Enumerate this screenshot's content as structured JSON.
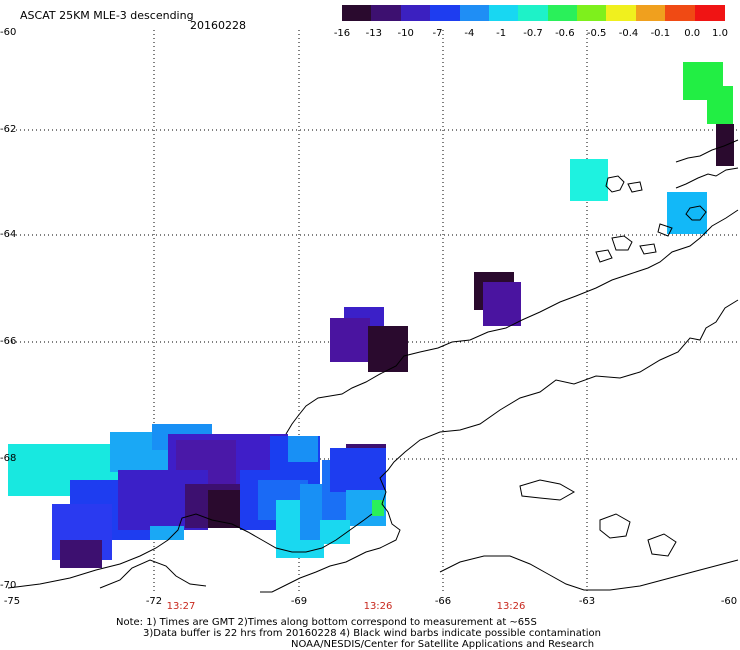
{
  "header": {
    "title": "ASCAT 25KM MLE-3 descending",
    "date": "20160228"
  },
  "colorbar": {
    "labels": [
      "-16",
      "-13",
      "-10",
      "-7",
      "-4",
      "-1",
      "-0.7",
      "-0.6",
      "-0.5",
      "-0.4",
      "-0.1",
      "0.0",
      "1.0"
    ],
    "colors": [
      "#2a0a2e",
      "#3d1070",
      "#3b20c0",
      "#1e3df0",
      "#1f8ef5",
      "#18d7f2",
      "#1ef2c8",
      "#2af05a",
      "#7ef01c",
      "#f0f01e",
      "#f0a01e",
      "#f04a14",
      "#f01414"
    ]
  },
  "axes": {
    "lat_labels": [
      "-60",
      "-62",
      "-64",
      "-66",
      "-68",
      "-70"
    ],
    "lon_labels": [
      "-75",
      "-72",
      "-69",
      "-66",
      "-63",
      "-60"
    ]
  },
  "times": [
    "13:27",
    "13:26",
    "13:26"
  ],
  "notes": [
    "Note: 1) Times are GMT 2)Times along bottom correspond to measurement at ~65S",
    "3)Data buffer is 22 hrs from 20160228 4) Black wind barbs indicate possible contamination",
    "NOAA/NESDIS/Center for Satellite Applications and Research"
  ]
}
